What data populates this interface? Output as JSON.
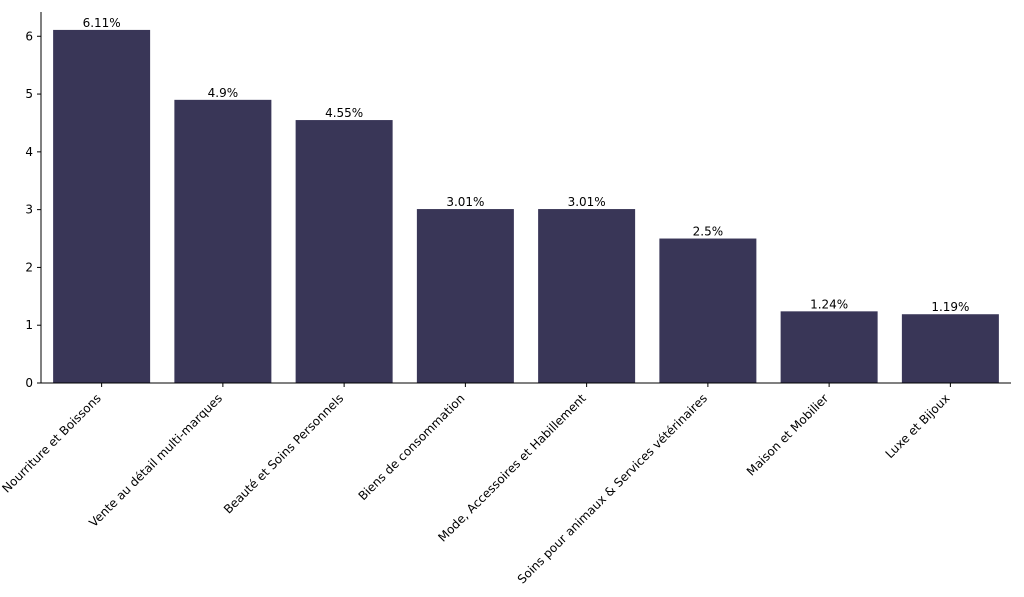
{
  "chart_data": {
    "type": "bar",
    "categories": [
      "Nourriture et Boissons",
      "Vente au détail multi-marques",
      "Beauté et Soins Personnels",
      "Biens de consommation",
      "Mode, Accessoires et Habillement",
      "Soins pour animaux & Services vétérinaires",
      "Maison et Mobilier",
      "Luxe et Bijoux"
    ],
    "values": [
      6.11,
      4.9,
      4.55,
      3.01,
      3.01,
      2.5,
      1.24,
      1.19
    ],
    "data_labels": [
      "6.11%",
      "4.9%",
      "4.55%",
      "3.01%",
      "3.01%",
      "2.5%",
      "1.24%",
      "1.19%"
    ],
    "title": "",
    "xlabel": "",
    "ylabel": "",
    "ylim": [
      0,
      6.42
    ],
    "yticks": [
      0,
      1,
      2,
      3,
      4,
      5,
      6
    ],
    "grid": false,
    "bar_color": "#393657",
    "axis_color": "#000000"
  }
}
